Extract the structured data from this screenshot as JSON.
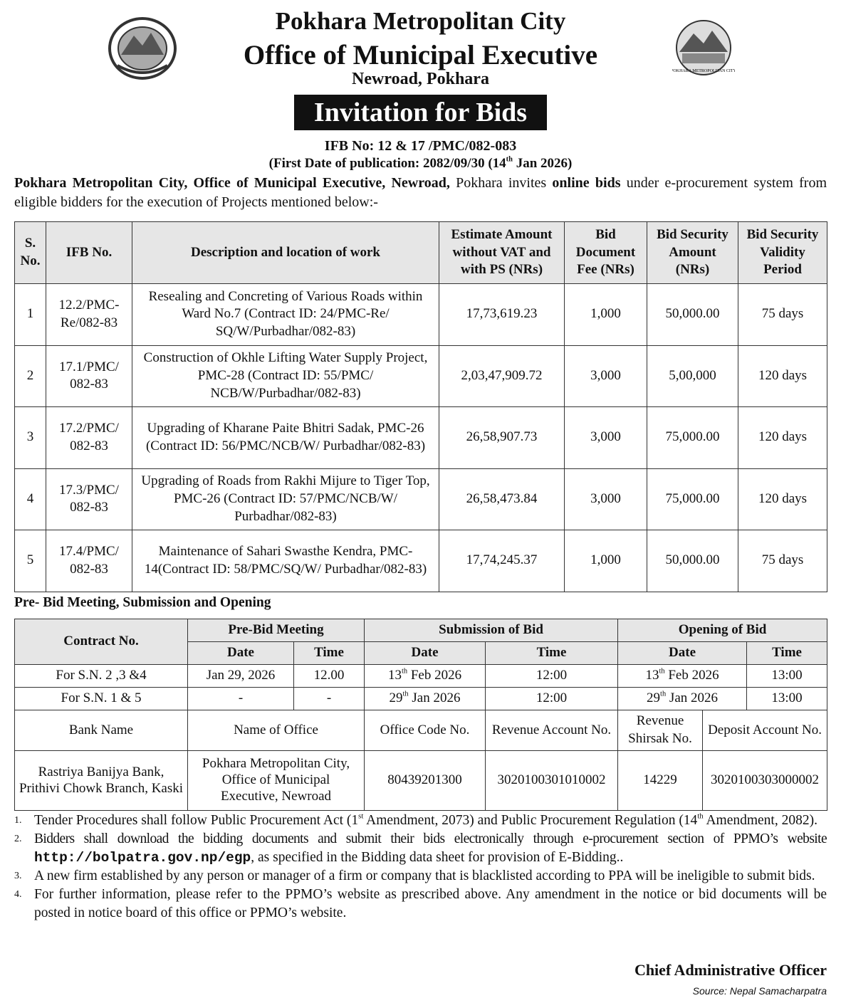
{
  "header": {
    "title": "Pokhara Metropolitan City",
    "subtitle": "Office of Municipal Executive",
    "address": "Newroad, Pokhara",
    "notice_title": "Invitation for Bids",
    "ifb_no": "IFB No: 12 & 17 /PMC/082-083",
    "publication": [
      "(First Date of publication: 2082/09/30 (14",
      "th",
      " Jan 2026)"
    ]
  },
  "intro": [
    "Pokhara Metropolitan City, Office of Municipal Executive, Newroad,",
    " Pokhara invites ",
    "online bids",
    " under e-procurement system from eligible bidders for the execution of Projects mentioned below:-"
  ],
  "projects_table": {
    "columns": [
      "S. No.",
      "IFB No.",
      "Description and location of work",
      "Estimate Amount without VAT and with PS (NRs)",
      "Bid Document Fee (NRs)",
      "Bid Security Amount (NRs)",
      "Bid Security Validity Period"
    ],
    "rows": [
      [
        "1",
        "12.2/PMC-Re/082-83",
        "Resealing and Concreting of Various Roads within Ward No.7 (Contract ID: 24/PMC-Re/ SQ/W/Purbadhar/082-83)",
        "17,73,619.23",
        "1,000",
        "50,000.00",
        "75 days"
      ],
      [
        "2",
        "17.1/PMC/ 082-83",
        "Construction of Okhle Lifting Water Supply Project, PMC-28 (Contract ID: 55/PMC/ NCB/W/Purbadhar/082-83)",
        "2,03,47,909.72",
        "3,000",
        "5,00,000",
        "120 days"
      ],
      [
        "3",
        "17.2/PMC/ 082-83",
        "Upgrading of Kharane Paite Bhitri Sadak, PMC-26 (Contract ID: 56/PMC/NCB/W/ Purbadhar/082-83)",
        "26,58,907.73",
        "3,000",
        "75,000.00",
        "120 days"
      ],
      [
        "4",
        "17.3/PMC/ 082-83",
        "Upgrading of Roads from Rakhi Mijure to Tiger Top, PMC-26 (Contract ID: 57/PMC/NCB/W/ Purbadhar/082-83)",
        "26,58,473.84",
        "3,000",
        "75,000.00",
        "120 days"
      ],
      [
        "5",
        "17.4/PMC/ 082-83",
        "Maintenance of Sahari Swasthe Kendra, PMC-14(Contract ID: 58/PMC/SQ/W/ Purbadhar/082-83)",
        "17,74,245.37",
        "1,000",
        "50,000.00",
        "75 days"
      ]
    ]
  },
  "schedule_heading": "Pre- Bid Meeting, Submission and Opening",
  "schedule_table": {
    "contract_header": "Contract No.",
    "groups": [
      "Pre-Bid Meeting",
      "Submission of Bid",
      "Opening of Bid"
    ],
    "subheaders": [
      "Date",
      "Time",
      "Date",
      "Time",
      "Date",
      "Time"
    ],
    "rows": [
      [
        "For S.N. 2 ,3 &4",
        "Jan 29, 2026",
        "12.00",
        [
          "13",
          "th",
          " Feb 2026"
        ],
        "12:00",
        [
          "13",
          "th",
          " Feb 2026"
        ],
        "13:00"
      ],
      [
        "For S.N. 1 & 5",
        "-",
        "-",
        [
          "29",
          "th",
          " Jan 2026"
        ],
        "12:00",
        [
          "29",
          "th",
          " Jan 2026"
        ],
        "13:00"
      ]
    ]
  },
  "bank_table": {
    "columns": [
      "Bank Name",
      "Name of Office",
      "Office Code No.",
      "Revenue Account No.",
      "Revenue Shirsak No.",
      "Deposit Account No."
    ],
    "rows": [
      [
        "Rastriya Banijya Bank, Prithivi Chowk Branch, Kaski",
        "Pokhara Metropolitan City, Office of Municipal Executive, Newroad",
        "80439201300",
        "3020100301010002",
        "14229",
        "3020100303000002"
      ]
    ]
  },
  "notes": [
    {
      "number": "1.",
      "text": [
        "Tender Procedures shall follow Public Procurement Act (1",
        "st",
        " Amendment, 2073) and Public Procurement Regulation (14",
        "th",
        " Amendment, 2082)."
      ]
    },
    {
      "number": "2.",
      "text": [
        "Bidders shall download the bidding documents and submit their bids electronically through e-procurement section of PPMO’s website",
        "http://bolpatra.gov.np/egp",
        ", as specified in the Bidding data sheet for provision of E-Bidding.."
      ]
    },
    {
      "number": "3.",
      "text": [
        "A new firm established by any person or manager of a firm or company that is blacklisted according to PPA will be ineligible to submit bids."
      ]
    },
    {
      "number": "4.",
      "text": [
        "For further information, please refer to the PPMO’s website as prescribed above. Any amendment in the notice or bid documents will be posted in notice board of this office or PPMO’s website."
      ]
    }
  ],
  "footer": {
    "signature": "Chief Administrative Officer",
    "source": "Source: Nepal Samacharpatra"
  }
}
